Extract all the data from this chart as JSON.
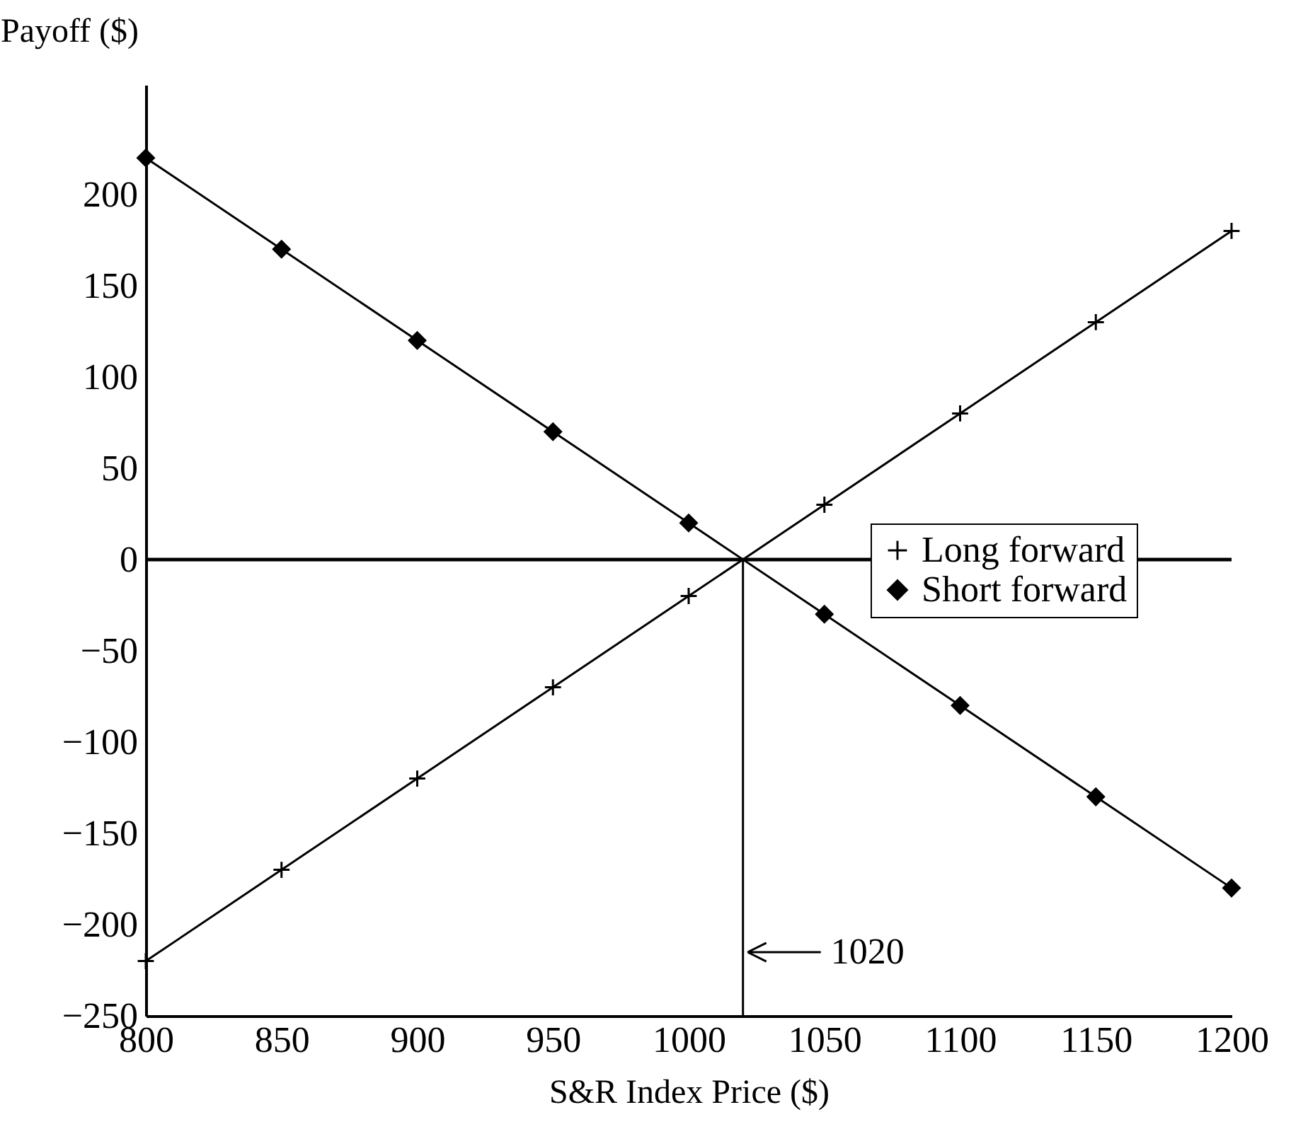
{
  "chart_data": {
    "type": "line",
    "xlabel": "S&R Index Price ($)",
    "ylabel": "Payoff ($)",
    "x": [
      800,
      850,
      900,
      950,
      1000,
      1050,
      1100,
      1150,
      1200
    ],
    "series": [
      {
        "name": "Long forward",
        "color": "#000000",
        "marker": "cross",
        "values": [
          -220,
          -170,
          -120,
          -70,
          -20,
          30,
          80,
          130,
          180
        ]
      },
      {
        "name": "Short forward",
        "color": "#000000",
        "marker": "diamond",
        "values": [
          220,
          170,
          120,
          70,
          20,
          -30,
          -80,
          -130,
          -180
        ]
      }
    ],
    "xlim": [
      800,
      1200
    ],
    "xticks": [
      800,
      850,
      900,
      950,
      1000,
      1050,
      1100,
      1150,
      1200
    ],
    "ylim": [
      -250,
      260
    ],
    "yticks": [
      -250,
      -200,
      -150,
      -100,
      -50,
      0,
      50,
      100,
      150,
      200
    ],
    "ref_lines": [
      {
        "axis": "y",
        "value": 0
      },
      {
        "axis": "x",
        "value": 1020,
        "label": "1020"
      }
    ],
    "legend": "right",
    "grid": false,
    "line_style": "solid"
  }
}
